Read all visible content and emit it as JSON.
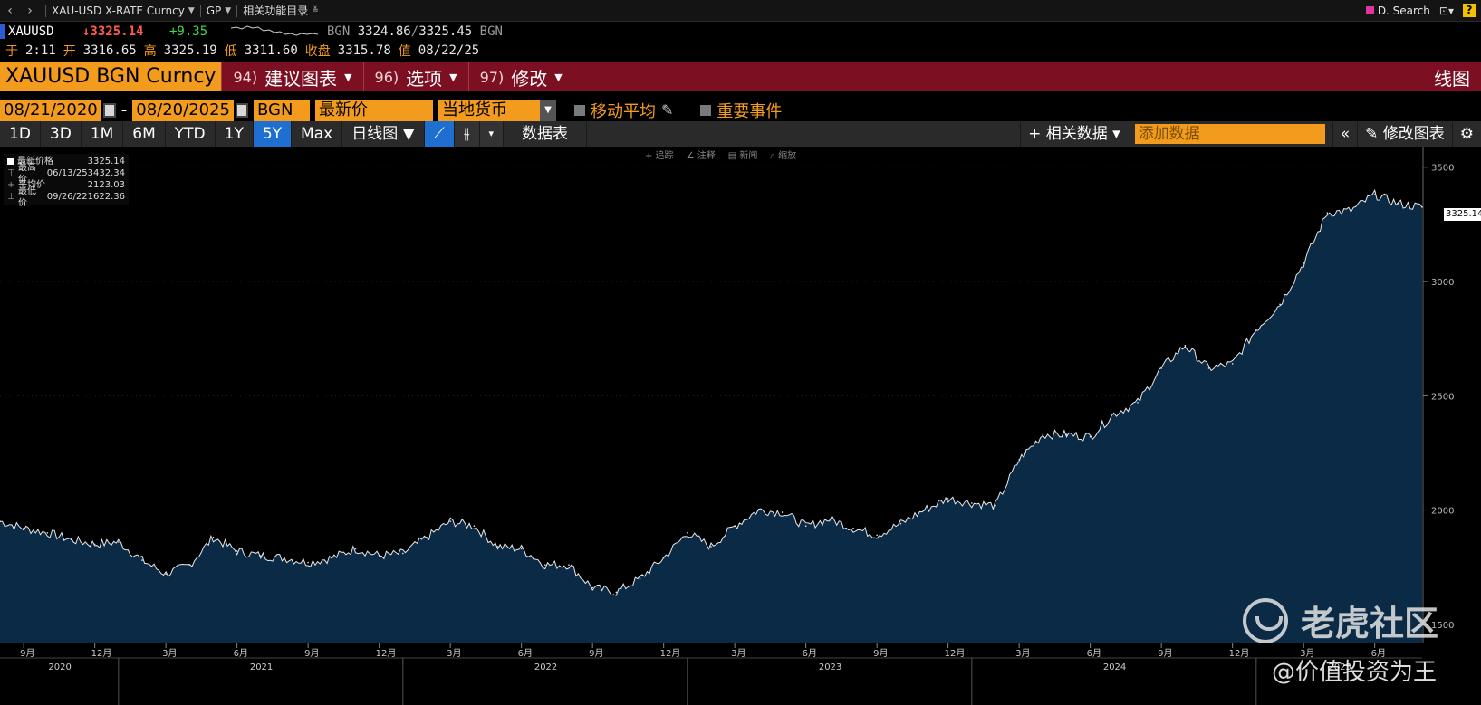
{
  "toolbar": {
    "back": "‹",
    "fwd": "›",
    "security": "XAU-USD X-RATE Curncy",
    "gp": "GP",
    "related": "相关功能目录",
    "search": "D. Search",
    "help": "?"
  },
  "quote": {
    "ticker": "XAUUSD",
    "last": "↓3325.14",
    "change": "+9.35",
    "bid_ccy": "BGN",
    "bid": "3324.86",
    "ask": "3325.45",
    "ask_ccy": "BGN"
  },
  "ohlc": {
    "time_label": "于",
    "time": "2:11",
    "open_label": "开",
    "open": "3316.65",
    "high_label": "高",
    "high": "3325.19",
    "low_label": "低",
    "low": "3311.60",
    "close_label": "收盘",
    "close": "3315.78",
    "val_label": "值",
    "val_date": "08/22/25"
  },
  "titlebar": {
    "security": "XAUUSD BGN Curncy",
    "menu": [
      {
        "num": "94)",
        "label": "建议图表"
      },
      {
        "num": "96)",
        "label": "选项"
      },
      {
        "num": "97)",
        "label": "修改"
      }
    ],
    "chart_type": "线图"
  },
  "settings": {
    "start_date": "08/21/2020",
    "dash": "-",
    "end_date": "08/20/2025",
    "source": "BGN",
    "field": "最新价",
    "currency": "当地货币",
    "moving_avg": "移动平均",
    "events": "重要事件"
  },
  "periods": [
    "1D",
    "3D",
    "1M",
    "6M",
    "YTD",
    "1Y",
    "5Y",
    "Max"
  ],
  "active_period": "5Y",
  "periodbar": {
    "frequency": "日线图 ▼",
    "datatable": "数据表",
    "related_data": "+ 相关数据 ▾",
    "add_data_placeholder": "添加数据",
    "collapse": "«",
    "edit_chart": "修改图表",
    "gear": "⚙"
  },
  "chart_tools": [
    "+ 追踪",
    "∠ 注释",
    "▤ 新闻",
    "⌕ 缩放"
  ],
  "legend": [
    {
      "label": "最新价格",
      "date": "",
      "value": "3325.14"
    },
    {
      "label": "最高价",
      "date": "06/13/25",
      "value": "3432.34"
    },
    {
      "label": "平均价",
      "date": "",
      "value": "2123.03"
    },
    {
      "label": "最低价",
      "date": "09/26/22",
      "value": "1622.36"
    }
  ],
  "last_tag": "3325.14",
  "watermark": {
    "brand": "老虎社区",
    "handle": "@价值投资为王"
  },
  "chart_data": {
    "type": "area",
    "ylim": [
      1420,
      3590
    ],
    "yticks": [
      1500,
      2000,
      2500,
      3000,
      3500
    ],
    "x": [
      "2020-08",
      "2020-09",
      "2020-10",
      "2020-11",
      "2020-12",
      "2021-01",
      "2021-02",
      "2021-03",
      "2021-04",
      "2021-05",
      "2021-06",
      "2021-07",
      "2021-08",
      "2021-09",
      "2021-10",
      "2021-11",
      "2021-12",
      "2022-01",
      "2022-02",
      "2022-03",
      "2022-04",
      "2022-05",
      "2022-06",
      "2022-07",
      "2022-08",
      "2022-09",
      "2022-10",
      "2022-11",
      "2022-12",
      "2023-01",
      "2023-02",
      "2023-03",
      "2023-04",
      "2023-05",
      "2023-06",
      "2023-07",
      "2023-08",
      "2023-09",
      "2023-10",
      "2023-11",
      "2023-12",
      "2024-01",
      "2024-02",
      "2024-03",
      "2024-04",
      "2024-05",
      "2024-06",
      "2024-07",
      "2024-08",
      "2024-09",
      "2024-10",
      "2024-11",
      "2024-12",
      "2025-01",
      "2025-02",
      "2025-03",
      "2025-04",
      "2025-05",
      "2025-06",
      "2025-07",
      "2025-08"
    ],
    "values": [
      1950,
      1920,
      1900,
      1870,
      1850,
      1860,
      1780,
      1720,
      1760,
      1880,
      1820,
      1800,
      1790,
      1770,
      1790,
      1830,
      1800,
      1810,
      1880,
      1950,
      1930,
      1840,
      1830,
      1760,
      1760,
      1660,
      1640,
      1700,
      1790,
      1900,
      1840,
      1930,
      2000,
      1990,
      1930,
      1960,
      1920,
      1890,
      1940,
      2000,
      2050,
      2030,
      2020,
      2220,
      2330,
      2330,
      2320,
      2420,
      2470,
      2620,
      2720,
      2620,
      2640,
      2790,
      2900,
      3080,
      3300,
      3310,
      3380,
      3340,
      3325
    ],
    "x_month_ticks": [
      "9月",
      "12月",
      "3月",
      "6月",
      "9月",
      "12月",
      "3月",
      "6月",
      "9月",
      "12月",
      "3月",
      "6月",
      "9月",
      "12月",
      "3月",
      "6月",
      "9月",
      "12月",
      "3月",
      "6月"
    ],
    "x_year_labels": [
      "2020",
      "2021",
      "2022",
      "2023",
      "2024",
      "2025"
    ]
  }
}
